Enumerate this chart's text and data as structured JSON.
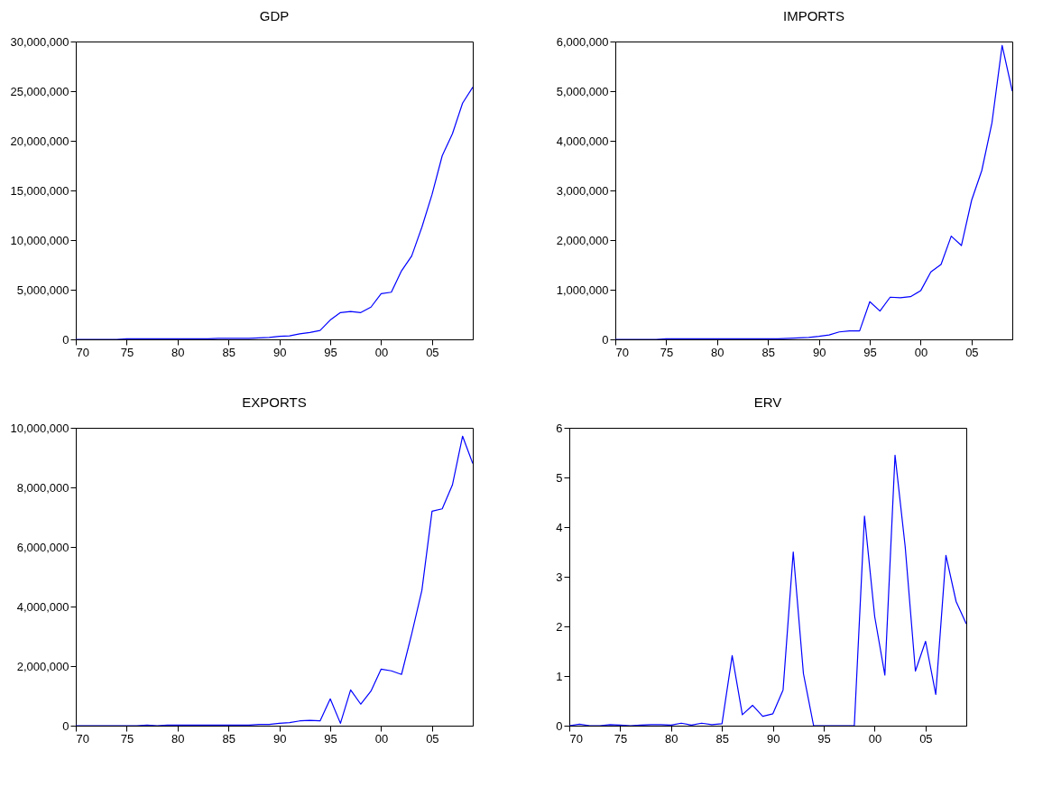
{
  "chart_data": [
    {
      "type": "line",
      "title": "GDP",
      "x": [
        1970,
        1971,
        1972,
        1973,
        1974,
        1975,
        1976,
        1977,
        1978,
        1979,
        1980,
        1981,
        1982,
        1983,
        1984,
        1985,
        1986,
        1987,
        1988,
        1989,
        1990,
        1991,
        1992,
        1993,
        1994,
        1995,
        1996,
        1997,
        1998,
        1999,
        2000,
        2001,
        2002,
        2003,
        2004,
        2005,
        2006,
        2007,
        2008,
        2009
      ],
      "series": [
        {
          "color": "#0000ff",
          "values": [
            0,
            0,
            0,
            0,
            0,
            50000,
            50000,
            50000,
            50000,
            50000,
            50000,
            50000,
            50000,
            50000,
            100000,
            100000,
            100000,
            100000,
            150000,
            200000,
            300000,
            350000,
            550000,
            700000,
            900000,
            1950000,
            2700000,
            2800000,
            2700000,
            3250000,
            4600000,
            4750000,
            6900000,
            8400000,
            11300000,
            14600000,
            18500000,
            20700000,
            23800000,
            25400000
          ]
        }
      ],
      "xlim": [
        1970,
        2009
      ],
      "xticks": [
        {
          "value": 1970,
          "label": "70"
        },
        {
          "value": 1975,
          "label": "75"
        },
        {
          "value": 1980,
          "label": "80"
        },
        {
          "value": 1985,
          "label": "85"
        },
        {
          "value": 1990,
          "label": "90"
        },
        {
          "value": 1995,
          "label": "95"
        },
        {
          "value": 2000,
          "label": "00"
        },
        {
          "value": 2005,
          "label": "05"
        }
      ],
      "ylim": [
        0,
        30000000
      ],
      "yticks": [
        {
          "value": 0,
          "label": "0"
        },
        {
          "value": 5000000,
          "label": "5,000,000"
        },
        {
          "value": 10000000,
          "label": "10,000,000"
        },
        {
          "value": 15000000,
          "label": "15,000,000"
        },
        {
          "value": 20000000,
          "label": "20,000,000"
        },
        {
          "value": 25000000,
          "label": "25,000,000"
        },
        {
          "value": 30000000,
          "label": "30,000,000"
        }
      ],
      "grid": false,
      "line_style": "solid"
    },
    {
      "type": "line",
      "title": "IMPORTS",
      "x": [
        1970,
        1971,
        1972,
        1973,
        1974,
        1975,
        1976,
        1977,
        1978,
        1979,
        1980,
        1981,
        1982,
        1983,
        1984,
        1985,
        1986,
        1987,
        1988,
        1989,
        1990,
        1991,
        1992,
        1993,
        1994,
        1995,
        1996,
        1997,
        1998,
        1999,
        2000,
        2001,
        2002,
        2003,
        2004,
        2005,
        2006,
        2007,
        2008,
        2009
      ],
      "series": [
        {
          "color": "#0000ff",
          "values": [
            0,
            0,
            0,
            0,
            0,
            10000,
            10000,
            10000,
            10000,
            10000,
            10000,
            10000,
            10000,
            10000,
            10000,
            10000,
            10000,
            20000,
            30000,
            40000,
            60000,
            90000,
            150000,
            170000,
            170000,
            760000,
            570000,
            850000,
            840000,
            860000,
            980000,
            1360000,
            1510000,
            2080000,
            1890000,
            2800000,
            3400000,
            4360000,
            5920000,
            5000000
          ]
        }
      ],
      "xlim": [
        1970,
        2009
      ],
      "xticks": [
        {
          "value": 1970,
          "label": "70"
        },
        {
          "value": 1975,
          "label": "75"
        },
        {
          "value": 1980,
          "label": "80"
        },
        {
          "value": 1985,
          "label": "85"
        },
        {
          "value": 1990,
          "label": "90"
        },
        {
          "value": 1995,
          "label": "95"
        },
        {
          "value": 2000,
          "label": "00"
        },
        {
          "value": 2005,
          "label": "05"
        }
      ],
      "ylim": [
        0,
        6000000
      ],
      "yticks": [
        {
          "value": 0,
          "label": "0"
        },
        {
          "value": 1000000,
          "label": "1,000,000"
        },
        {
          "value": 2000000,
          "label": "2,000,000"
        },
        {
          "value": 3000000,
          "label": "3,000,000"
        },
        {
          "value": 4000000,
          "label": "4,000,000"
        },
        {
          "value": 5000000,
          "label": "5,000,000"
        },
        {
          "value": 6000000,
          "label": "6,000,000"
        }
      ],
      "grid": false,
      "line_style": "solid"
    },
    {
      "type": "line",
      "title": "EXPORTS",
      "x": [
        1970,
        1971,
        1972,
        1973,
        1974,
        1975,
        1976,
        1977,
        1978,
        1979,
        1980,
        1981,
        1982,
        1983,
        1984,
        1985,
        1986,
        1987,
        1988,
        1989,
        1990,
        1991,
        1992,
        1993,
        1994,
        1995,
        1996,
        1997,
        1998,
        1999,
        2000,
        2001,
        2002,
        2003,
        2004,
        2005,
        2006,
        2007,
        2008,
        2009
      ],
      "series": [
        {
          "color": "#0000ff",
          "values": [
            0,
            0,
            0,
            0,
            0,
            0,
            0,
            20000,
            0,
            20000,
            20000,
            20000,
            20000,
            20000,
            20000,
            20000,
            20000,
            20000,
            40000,
            40000,
            80000,
            100000,
            160000,
            180000,
            160000,
            900000,
            80000,
            1200000,
            720000,
            1160000,
            1900000,
            1840000,
            1720000,
            3080000,
            4540000,
            7200000,
            7280000,
            8080000,
            9720000,
            8800000
          ]
        }
      ],
      "xlim": [
        1970,
        2009
      ],
      "xticks": [
        {
          "value": 1970,
          "label": "70"
        },
        {
          "value": 1975,
          "label": "75"
        },
        {
          "value": 1980,
          "label": "80"
        },
        {
          "value": 1985,
          "label": "85"
        },
        {
          "value": 1990,
          "label": "90"
        },
        {
          "value": 1995,
          "label": "95"
        },
        {
          "value": 2000,
          "label": "00"
        },
        {
          "value": 2005,
          "label": "05"
        }
      ],
      "ylim": [
        0,
        10000000
      ],
      "yticks": [
        {
          "value": 0,
          "label": "0"
        },
        {
          "value": 2000000,
          "label": "2,000,000"
        },
        {
          "value": 4000000,
          "label": "4,000,000"
        },
        {
          "value": 6000000,
          "label": "6,000,000"
        },
        {
          "value": 8000000,
          "label": "8,000,000"
        },
        {
          "value": 10000000,
          "label": "10,000,000"
        }
      ],
      "grid": false,
      "line_style": "solid"
    },
    {
      "type": "line",
      "title": "ERV",
      "x": [
        1970,
        1971,
        1972,
        1973,
        1974,
        1975,
        1976,
        1977,
        1978,
        1979,
        1980,
        1981,
        1982,
        1983,
        1984,
        1985,
        1986,
        1987,
        1988,
        1989,
        1990,
        1991,
        1992,
        1993,
        1994,
        1995,
        1996,
        1997,
        1998,
        1999,
        2000,
        2001,
        2002,
        2003,
        2004,
        2005,
        2006,
        2007,
        2008,
        2009
      ],
      "series": [
        {
          "color": "#0000ff",
          "values": [
            0,
            0.03,
            0,
            0,
            0.02,
            0.01,
            0,
            0.01,
            0.02,
            0.02,
            0.01,
            0.05,
            0.01,
            0.05,
            0.02,
            0.04,
            1.41,
            0.22,
            0.41,
            0.19,
            0.24,
            0.72,
            3.5,
            1.05,
            0,
            0,
            0,
            0,
            0,
            4.22,
            2.2,
            1.02,
            5.45,
            3.6,
            1.1,
            1.7,
            0.63,
            3.43,
            2.5,
            2.05
          ]
        }
      ],
      "xlim": [
        1970,
        2009
      ],
      "xticks": [
        {
          "value": 1970,
          "label": "70"
        },
        {
          "value": 1975,
          "label": "75"
        },
        {
          "value": 1980,
          "label": "80"
        },
        {
          "value": 1985,
          "label": "85"
        },
        {
          "value": 1990,
          "label": "90"
        },
        {
          "value": 1995,
          "label": "95"
        },
        {
          "value": 2000,
          "label": "00"
        },
        {
          "value": 2005,
          "label": "05"
        }
      ],
      "ylim": [
        0,
        6
      ],
      "yticks": [
        0,
        1,
        2,
        3,
        4,
        5,
        6
      ],
      "grid": false,
      "line_style": "solid"
    }
  ]
}
